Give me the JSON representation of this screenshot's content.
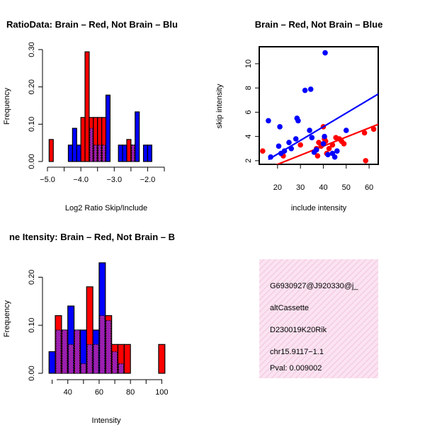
{
  "colors": {
    "red": "#ff0000",
    "blue": "#0000ff",
    "overlap": "#9b1fb0",
    "pval": "#8b0000",
    "info_bg": "#fbe0f0"
  },
  "chart_data": [
    {
      "id": "ratio",
      "type": "bar",
      "title": "RatioData: Brain - Red, Not Brain - Blue",
      "title_visible": "RatioData: Brain – Red, Not Brain – Blu",
      "xlabel": "Log2 Ratio Skip/Include",
      "ylabel": "Frequency",
      "xlim": [
        -5.0,
        -1.5
      ],
      "ylim": [
        0,
        0.3
      ],
      "xticks": [
        -5.0,
        -4.0,
        -3.0,
        -2.0
      ],
      "xtick_labels": [
        "−5.0",
        "−4.0",
        "−3.0",
        "−2.0"
      ],
      "yticks": [
        0.0,
        0.1,
        0.2,
        0.3
      ],
      "ytick_labels": [
        "0.00",
        "0.10",
        "0.20",
        "0.30"
      ],
      "bin_width": 0.125,
      "series": [
        {
          "name": "Brain",
          "color": "red",
          "bins": [
            [
              -4.95,
              0.059
            ],
            [
              -4.0,
              0.118
            ],
            [
              -3.875,
              0.294
            ],
            [
              -3.75,
              0.118
            ],
            [
              -3.625,
              0.118
            ],
            [
              -3.5,
              0.118
            ],
            [
              -3.375,
              0.118
            ],
            [
              -2.625,
              0.059
            ],
            [
              -2.5,
              0.044
            ]
          ]
        },
        {
          "name": "Not Brain",
          "color": "blue",
          "bins": [
            [
              -4.375,
              0.044
            ],
            [
              -4.25,
              0.089
            ],
            [
              -4.125,
              0.044
            ],
            [
              -3.75,
              0.089
            ],
            [
              -3.625,
              0.044
            ],
            [
              -3.5,
              0.044
            ],
            [
              -3.375,
              0.044
            ],
            [
              -3.25,
              0.178
            ],
            [
              -2.875,
              0.044
            ],
            [
              -2.75,
              0.044
            ],
            [
              -2.5,
              0.044
            ],
            [
              -2.375,
              0.133
            ],
            [
              -2.125,
              0.044
            ],
            [
              -2.0,
              0.044
            ]
          ]
        }
      ]
    },
    {
      "id": "scatter",
      "type": "scatter",
      "title": "Brain - Red, Not Brain - Blue",
      "title_visible": "Brain – Red, Not Brain – Blue",
      "xlabel": "include intensity",
      "ylabel": "skip intensity",
      "xlim": [
        12,
        64
      ],
      "ylim": [
        1.7,
        11.4
      ],
      "xticks": [
        20,
        30,
        40,
        50,
        60
      ],
      "yticks": [
        2,
        4,
        6,
        8,
        10
      ],
      "series": [
        {
          "name": "Brain",
          "color": "red",
          "points": [
            [
              13.5,
              2.8
            ],
            [
              22.5,
              2.4
            ],
            [
              30,
              3.3
            ],
            [
              37,
              3.0
            ],
            [
              37.5,
              2.4
            ],
            [
              38,
              3.5
            ],
            [
              39,
              3.2
            ],
            [
              40,
              4.8
            ],
            [
              40.5,
              3.8
            ],
            [
              41,
              3.6
            ],
            [
              41.5,
              2.6
            ],
            [
              42.5,
              3.0
            ],
            [
              44,
              3.3
            ],
            [
              45.5,
              3.9
            ],
            [
              47,
              3.8
            ],
            [
              48,
              3.6
            ],
            [
              49,
              3.4
            ],
            [
              58,
              4.3
            ],
            [
              58.5,
              2.0
            ],
            [
              62,
              4.6
            ]
          ],
          "fit": [
            [
              12,
              1.1
            ],
            [
              64,
              5.0
            ]
          ]
        },
        {
          "name": "Not Brain",
          "color": "blue",
          "points": [
            [
              16,
              5.3
            ],
            [
              17,
              2.3
            ],
            [
              20.5,
              3.2
            ],
            [
              21,
              4.8
            ],
            [
              21.5,
              2.6
            ],
            [
              23,
              2.8
            ],
            [
              25,
              3.5
            ],
            [
              26,
              3.0
            ],
            [
              28,
              3.8
            ],
            [
              28.5,
              5.5
            ],
            [
              29,
              5.3
            ],
            [
              32,
              7.8
            ],
            [
              34,
              4.5
            ],
            [
              34.5,
              7.9
            ],
            [
              35,
              3.9
            ],
            [
              36,
              2.7
            ],
            [
              37,
              2.9
            ],
            [
              40,
              3.4
            ],
            [
              40.5,
              4.0
            ],
            [
              40.8,
              10.9
            ],
            [
              42,
              2.5
            ],
            [
              44,
              2.6
            ],
            [
              45,
              2.3
            ],
            [
              46,
              2.8
            ],
            [
              50,
              4.5
            ]
          ],
          "fit": [
            [
              16,
              2.1
            ],
            [
              64,
              7.5
            ]
          ]
        }
      ]
    },
    {
      "id": "intensity",
      "type": "bar",
      "title": "Gene Itensity: Brain - Red, Not Brain - Blue",
      "title_visible": "ne Itensity: Brain – Red, Not Brain – B",
      "xlabel": "Intensity",
      "ylabel": "Frequency",
      "xlim": [
        27,
        103
      ],
      "ylim": [
        0,
        0.23
      ],
      "xticks": [
        40,
        60,
        80,
        100
      ],
      "yticks": [
        0.0,
        0.1,
        0.2
      ],
      "ytick_labels": [
        "0.00",
        "0.10",
        "0.20"
      ],
      "bin_width": 4,
      "series": [
        {
          "name": "Brain",
          "color": "red",
          "bins": [
            [
              32,
              0.12
            ],
            [
              36,
              0.09
            ],
            [
              40,
              0.06
            ],
            [
              44,
              0.09
            ],
            [
              48,
              0.02
            ],
            [
              52,
              0.18
            ],
            [
              56,
              0.06
            ],
            [
              60,
              0.12
            ],
            [
              64,
              0.12
            ],
            [
              68,
              0.06
            ],
            [
              72,
              0.06
            ],
            [
              76,
              0.06
            ],
            [
              98,
              0.06
            ]
          ]
        },
        {
          "name": "Not Brain",
          "color": "blue",
          "bins": [
            [
              28,
              0.045
            ],
            [
              32,
              0.09
            ],
            [
              36,
              0.09
            ],
            [
              40,
              0.14
            ],
            [
              44,
              0.09
            ],
            [
              48,
              0.09
            ],
            [
              52,
              0.06
            ],
            [
              56,
              0.09
            ],
            [
              60,
              0.23
            ],
            [
              64,
              0.11
            ],
            [
              68,
              0.045
            ],
            [
              72,
              0.02
            ]
          ]
        }
      ]
    }
  ],
  "info_panel": {
    "event_id": "G6930927@J920330@j_",
    "event_type": "altCassette",
    "gene": "D230019K20Rik",
    "location": "chr15.9117−1.1",
    "pval": "Pval: 0.009002"
  }
}
